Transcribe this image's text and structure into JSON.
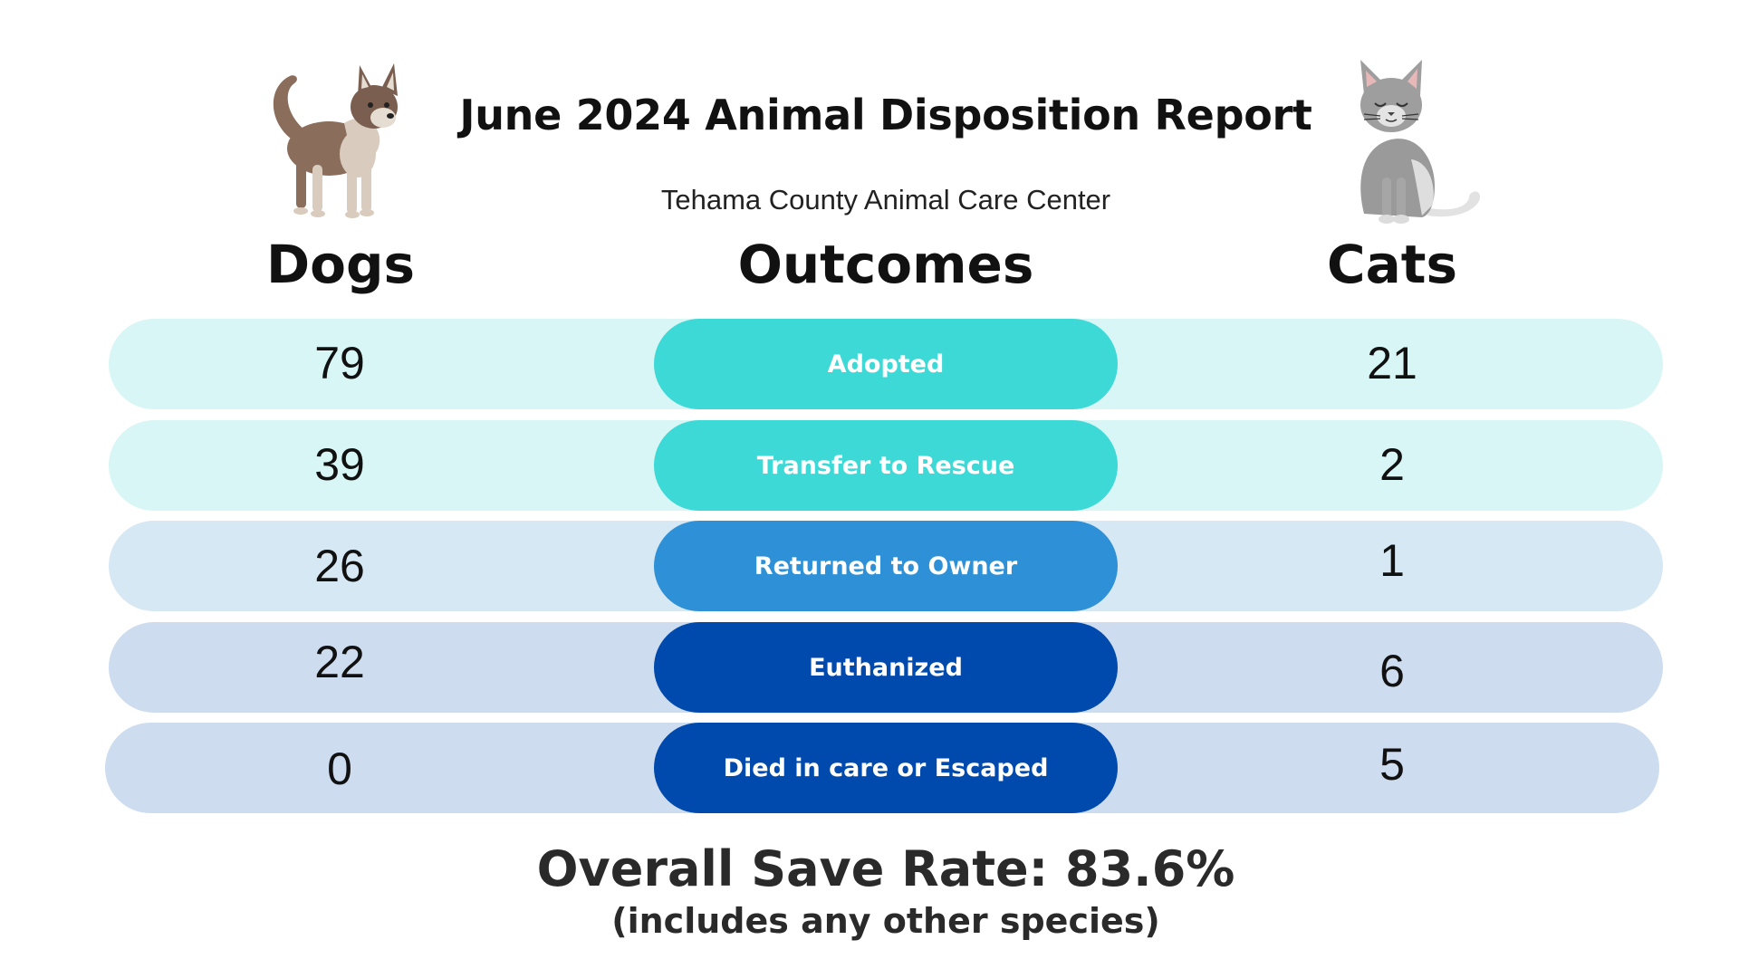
{
  "header": {
    "title": "June 2024 Animal Disposition Report",
    "subtitle": "Tehama County Animal Care Center"
  },
  "columns": {
    "dogs": "Dogs",
    "outcomes": "Outcomes",
    "cats": "Cats"
  },
  "rows": [
    {
      "outcome": "Adopted",
      "dogs": "79",
      "cats": "21",
      "row_color": "#d8f6f5",
      "pill_color": "#3dd9d6"
    },
    {
      "outcome": "Transfer to Rescue",
      "dogs": "39",
      "cats": "2",
      "row_color": "#d8f6f5",
      "pill_color": "#3dd9d6"
    },
    {
      "outcome": "Returned to Owner",
      "dogs": "26",
      "cats": "1",
      "row_color": "#d6e8f4",
      "pill_color": "#2e90d6"
    },
    {
      "outcome": "Euthanized",
      "dogs": "22",
      "cats": "6",
      "row_color": "#cddcef",
      "pill_color": "#004aad"
    },
    {
      "outcome": "Died in care or Escaped",
      "dogs": "0",
      "cats": "5",
      "row_color": "#cddcef",
      "pill_color": "#004aad"
    }
  ],
  "footer": {
    "save_rate": "Overall Save Rate: 83.6%",
    "note": "(includes any other species)"
  },
  "illustrations": {
    "left": "dog-illustration",
    "right": "cat-illustration"
  }
}
